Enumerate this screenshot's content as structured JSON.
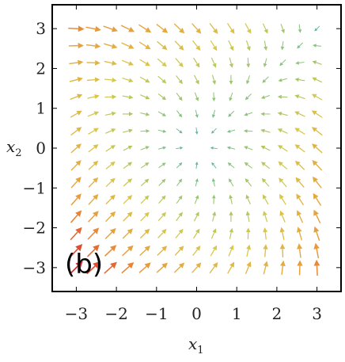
{
  "chart_data": {
    "type": "vector-field",
    "panel_label": "(b)",
    "xlabel": "x",
    "xlabel_sub": "1",
    "ylabel": "x",
    "ylabel_sub": "2",
    "xlim": [
      -3.6,
      3.6
    ],
    "ylim": [
      -3.6,
      3.6
    ],
    "xticks": [
      -3,
      -2,
      -1,
      0,
      1,
      2,
      3
    ],
    "yticks": [
      -3,
      -2,
      -1,
      0,
      1,
      2,
      3
    ],
    "xtick_labels": [
      "−3",
      "−2",
      "−1",
      "0",
      "1",
      "2",
      "3"
    ],
    "ytick_labels": [
      "−3",
      "−2",
      "−1",
      "0",
      "1",
      "2",
      "3"
    ],
    "grid_min": -3,
    "grid_max": 3,
    "grid_count": 15,
    "field": "fx = -x1 + 0.3*x2^2, fy = -x2 + 0.3*x1^2 (approximate)",
    "colormap": [
      "#3d9fd0",
      "#8cc47a",
      "#d8c84a",
      "#e99a3a",
      "#d92e2a"
    ],
    "grid": false
  }
}
